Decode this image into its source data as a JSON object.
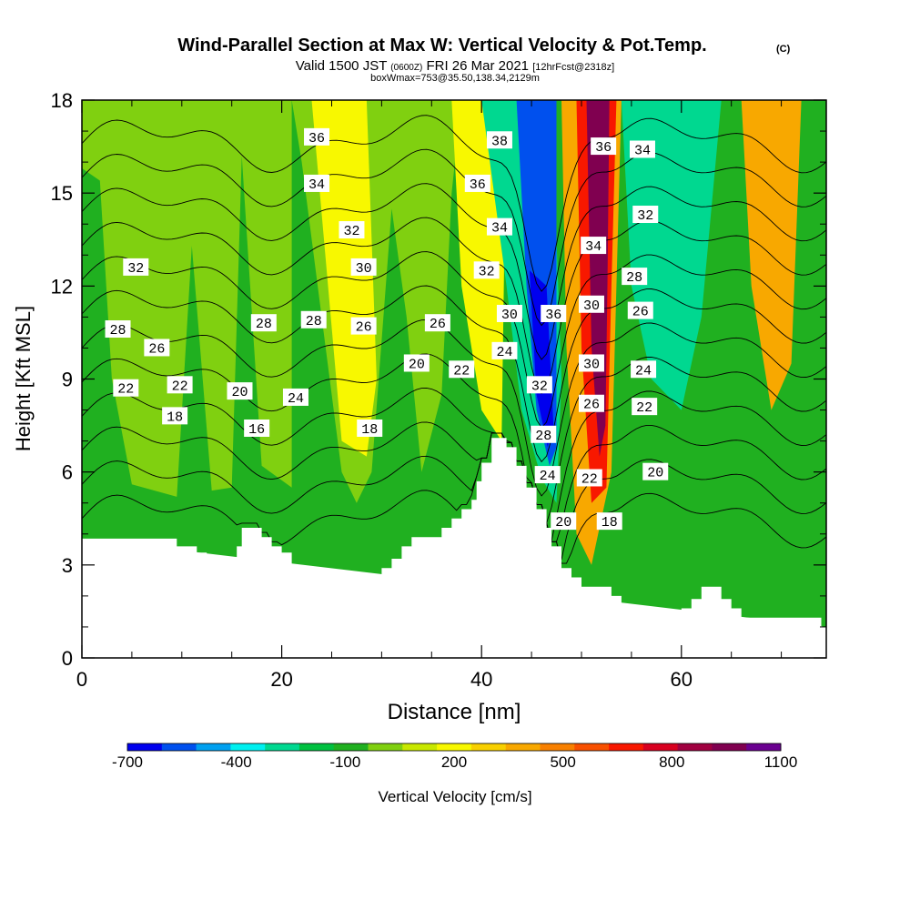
{
  "chart_data": {
    "type": "heatmap",
    "title": "Wind-Parallel Section at Max W: Vertical Velocity & Pot.Temp.",
    "title_mark": "(C)",
    "subtitle": {
      "valid": "Valid 1500 JST",
      "utc": "(0600Z)",
      "date": "FRI 26 Mar 2021",
      "forecast": "[12hrFcst@2318z]"
    },
    "box_info": "boxWmax=753@35.50,138.34,2129m",
    "xlabel": "Distance [nm]",
    "ylabel": "Height [Kft MSL]",
    "xlim": [
      0,
      74.5
    ],
    "ylim": [
      0,
      18
    ],
    "xticks": [
      0,
      20,
      40,
      60
    ],
    "yticks": [
      0,
      3,
      6,
      9,
      12,
      15,
      18
    ],
    "colorbar": {
      "label": "Vertical Velocity [cm/s]",
      "tick_labels": [
        "-700",
        "-400",
        "-100",
        "200",
        "500",
        "800",
        "1100"
      ],
      "tick_values": [
        -700,
        -400,
        -100,
        200,
        500,
        800,
        1100
      ],
      "bounds": [
        -700,
        1100
      ],
      "colors": [
        "#0000ee",
        "#0050ee",
        "#00a0f0",
        "#00f0f0",
        "#00d890",
        "#00c040",
        "#20b020",
        "#80d010",
        "#c8e800",
        "#f8f800",
        "#f8d000",
        "#f8a800",
        "#f88000",
        "#f85000",
        "#f81800",
        "#d80020",
        "#a00040",
        "#800050",
        "#6a0090"
      ]
    },
    "terrain": [
      [
        0,
        3.85
      ],
      [
        9.5,
        3.85
      ],
      [
        9.5,
        3.6
      ],
      [
        11.5,
        3.6
      ],
      [
        11.5,
        3.4
      ],
      [
        12.5,
        3.4
      ],
      [
        12.5,
        3.1
      ],
      [
        13,
        3.1
      ],
      [
        13,
        2.9
      ],
      [
        15,
        2.9
      ],
      [
        15,
        3.1
      ],
      [
        15.5,
        3.1
      ],
      [
        15.5,
        3.6
      ],
      [
        16,
        3.6
      ],
      [
        16,
        4.2
      ],
      [
        18,
        4.2
      ],
      [
        18,
        3.9
      ],
      [
        19,
        3.9
      ],
      [
        19,
        3.6
      ],
      [
        20,
        3.6
      ],
      [
        20,
        3.4
      ],
      [
        21,
        3.4
      ],
      [
        21,
        2.9
      ],
      [
        22,
        2.9
      ],
      [
        22,
        2.6
      ],
      [
        23,
        2.6
      ],
      [
        23,
        2.3
      ],
      [
        24,
        2.3
      ],
      [
        24,
        1.6
      ],
      [
        25,
        1.6
      ],
      [
        25,
        1.3
      ],
      [
        26,
        1.3
      ],
      [
        26,
        1.6
      ],
      [
        27,
        1.6
      ],
      [
        27,
        1.9
      ],
      [
        28,
        1.9
      ],
      [
        28,
        2.2
      ],
      [
        29,
        2.2
      ],
      [
        29,
        2.5
      ],
      [
        30,
        2.5
      ],
      [
        30,
        2.9
      ],
      [
        31,
        2.9
      ],
      [
        31,
        3.2
      ],
      [
        32,
        3.2
      ],
      [
        32,
        3.6
      ],
      [
        33,
        3.6
      ],
      [
        33,
        3.9
      ],
      [
        36,
        3.9
      ],
      [
        36,
        4.2
      ],
      [
        37,
        4.2
      ],
      [
        37,
        4.5
      ],
      [
        38,
        4.5
      ],
      [
        38,
        4.8
      ],
      [
        39,
        4.8
      ],
      [
        39,
        5.1
      ],
      [
        39.5,
        5.1
      ],
      [
        39.5,
        5.7
      ],
      [
        40,
        5.7
      ],
      [
        40,
        6.3
      ],
      [
        41,
        6.3
      ],
      [
        41,
        7.1
      ],
      [
        42.5,
        7.1
      ],
      [
        42.5,
        6.8
      ],
      [
        43.5,
        6.8
      ],
      [
        43.5,
        6.2
      ],
      [
        44.5,
        6.2
      ],
      [
        44.5,
        5.5
      ],
      [
        45.5,
        5.5
      ],
      [
        45.5,
        4.8
      ],
      [
        46.5,
        4.8
      ],
      [
        46.5,
        4.2
      ],
      [
        47,
        4.2
      ],
      [
        47,
        3.6
      ],
      [
        48,
        3.6
      ],
      [
        48,
        2.9
      ],
      [
        49,
        2.9
      ],
      [
        49,
        2.6
      ],
      [
        50,
        2.6
      ],
      [
        50,
        2.3
      ],
      [
        53,
        2.3
      ],
      [
        53,
        2.0
      ],
      [
        54,
        2.0
      ],
      [
        54,
        1.6
      ],
      [
        55,
        1.6
      ],
      [
        55,
        0.9
      ],
      [
        56,
        0.9
      ],
      [
        56,
        0.5
      ],
      [
        57,
        0.5
      ],
      [
        57,
        0.3
      ],
      [
        59,
        0.3
      ],
      [
        59,
        0.9
      ],
      [
        60,
        0.9
      ],
      [
        60,
        1.6
      ],
      [
        61,
        1.6
      ],
      [
        61,
        1.9
      ],
      [
        62,
        1.9
      ],
      [
        62,
        2.3
      ],
      [
        64,
        2.3
      ],
      [
        64,
        1.9
      ],
      [
        65,
        1.9
      ],
      [
        65,
        1.6
      ],
      [
        66,
        1.6
      ],
      [
        66,
        1.3
      ],
      [
        74,
        1.3
      ],
      [
        74,
        1.0
      ],
      [
        74.5,
        1.0
      ]
    ],
    "velocity_bands": [
      {
        "value": -100,
        "polygon": [
          [
            0,
            3.85
          ],
          [
            0,
            18
          ],
          [
            74.5,
            18
          ],
          [
            74.5,
            1.0
          ]
        ]
      },
      {
        "value": 50,
        "polygon": [
          [
            0,
            15.8
          ],
          [
            1.8,
            15.4
          ],
          [
            3,
            9
          ],
          [
            5,
            5.6
          ],
          [
            9.5,
            5.2
          ],
          [
            11,
            13.3
          ],
          [
            13,
            5.4
          ],
          [
            15,
            5.5
          ],
          [
            16,
            16.2
          ],
          [
            18,
            6.2
          ],
          [
            21,
            5.5
          ],
          [
            21,
            18
          ],
          [
            0,
            18
          ]
        ]
      },
      {
        "value": 50,
        "polygon": [
          [
            21,
            18
          ],
          [
            22,
            16
          ],
          [
            24,
            11
          ],
          [
            26,
            6
          ],
          [
            27.5,
            5
          ],
          [
            29,
            6
          ],
          [
            31,
            14.5
          ],
          [
            32.5,
            11
          ],
          [
            34,
            6
          ],
          [
            36,
            8.5
          ],
          [
            37,
            15
          ],
          [
            38,
            18
          ]
        ]
      },
      {
        "value": 200,
        "polygon": [
          [
            23,
            18
          ],
          [
            26,
            7
          ],
          [
            28.5,
            6.5
          ],
          [
            29.5,
            9
          ],
          [
            28.5,
            18
          ]
        ]
      },
      {
        "value": 200,
        "polygon": [
          [
            37,
            18
          ],
          [
            38,
            12
          ],
          [
            40,
            8
          ],
          [
            42,
            7
          ],
          [
            42.5,
            18
          ]
        ]
      },
      {
        "value": -250,
        "polygon": [
          [
            40,
            18
          ],
          [
            42.5,
            12
          ],
          [
            44,
            8
          ],
          [
            46,
            5.8
          ],
          [
            47.5,
            5
          ],
          [
            48,
            9
          ],
          [
            47,
            18
          ]
        ]
      },
      {
        "value": -550,
        "polygon": [
          [
            43.5,
            18
          ],
          [
            44.5,
            12
          ],
          [
            45.5,
            8
          ],
          [
            46.8,
            6.2
          ],
          [
            47.5,
            6.8
          ],
          [
            47.5,
            18
          ]
        ]
      },
      {
        "value": -700,
        "polygon": [
          [
            44.8,
            12.5
          ],
          [
            45.5,
            8.5
          ],
          [
            46.6,
            6.8
          ],
          [
            47.2,
            7.5
          ],
          [
            46.5,
            12
          ]
        ]
      },
      {
        "value": 350,
        "polygon": [
          [
            48,
            18
          ],
          [
            48.5,
            10
          ],
          [
            49.5,
            4
          ],
          [
            51,
            3
          ],
          [
            53,
            6
          ],
          [
            54,
            18
          ]
        ]
      },
      {
        "value": 650,
        "polygon": [
          [
            49.5,
            18
          ],
          [
            50,
            10
          ],
          [
            51,
            5
          ],
          [
            52.5,
            5.5
          ],
          [
            53,
            12
          ],
          [
            53.5,
            18
          ]
        ]
      },
      {
        "value": 950,
        "polygon": [
          [
            50.5,
            18
          ],
          [
            51,
            10
          ],
          [
            51.8,
            6.5
          ],
          [
            52.4,
            7.5
          ],
          [
            52.6,
            12
          ],
          [
            52.8,
            18
          ]
        ]
      },
      {
        "value": -250,
        "polygon": [
          [
            54,
            18
          ],
          [
            55,
            12
          ],
          [
            57,
            9
          ],
          [
            60,
            8
          ],
          [
            62,
            11
          ],
          [
            64,
            18
          ]
        ]
      },
      {
        "value": 350,
        "polygon": [
          [
            66,
            18
          ],
          [
            67,
            12
          ],
          [
            69,
            8
          ],
          [
            71,
            9.5
          ],
          [
            72,
            18
          ]
        ]
      }
    ],
    "isentropes": [
      {
        "value": 16,
        "label_at": [
          17.5,
          7.4
        ]
      },
      {
        "value": 18,
        "label_at": [
          9.3,
          7.8
        ],
        "label_at_2": [
          28.8,
          7.4
        ],
        "label_at_3": [
          52.8,
          4.4
        ]
      },
      {
        "value": 20,
        "label_at": [
          15.8,
          8.6
        ],
        "label_at_2": [
          33.5,
          9.5
        ],
        "label_at_3": [
          48.2,
          4.4
        ],
        "label_at_4": [
          57.4,
          6.0
        ]
      },
      {
        "value": 22,
        "label_at": [
          4.4,
          8.7
        ],
        "label_at_2": [
          9.8,
          8.8
        ],
        "label_at_3": [
          38,
          9.3
        ],
        "label_at_4": [
          50.8,
          5.8
        ],
        "label_at_5": [
          56.3,
          8.1
        ]
      },
      {
        "value": 24,
        "label_at": [
          21.4,
          8.4
        ],
        "label_at_2": [
          42.3,
          9.9
        ],
        "label_at_3": [
          46.6,
          5.9
        ],
        "label_at_4": [
          56.2,
          9.3
        ]
      },
      {
        "value": 26,
        "label_at": [
          7.5,
          10.0
        ],
        "label_at_2": [
          28.2,
          10.7
        ],
        "label_at_3": [
          35.6,
          10.8
        ],
        "label_at_4": [
          51,
          8.2
        ],
        "label_at_5": [
          55.9,
          11.2
        ]
      },
      {
        "value": 28,
        "label_at": [
          3.6,
          10.6
        ],
        "label_at_2": [
          18.2,
          10.8
        ],
        "label_at_3": [
          23.2,
          10.9
        ],
        "label_at_4": [
          46.2,
          7.2
        ],
        "label_at_5": [
          55.3,
          12.3
        ]
      },
      {
        "value": 30,
        "label_at": [
          28.2,
          12.6
        ],
        "label_at_2": [
          42.8,
          11.1
        ],
        "label_at_3": [
          51,
          11.4
        ],
        "label_at_4": [
          51,
          9.5
        ]
      },
      {
        "value": 32,
        "label_at": [
          5.4,
          12.6
        ],
        "label_at_2": [
          27,
          13.8
        ],
        "label_at_3": [
          40.5,
          12.5
        ],
        "label_at_4": [
          45.8,
          8.8
        ],
        "label_at_5": [
          56.4,
          14.3
        ]
      },
      {
        "value": 34,
        "label_at": [
          23.5,
          15.3
        ],
        "label_at_2": [
          41.8,
          13.9
        ],
        "label_at_3": [
          51.2,
          13.3
        ],
        "label_at_4": [
          56.1,
          16.4
        ]
      },
      {
        "value": 36,
        "label_at": [
          23.5,
          16.8
        ],
        "label_at_2": [
          39.6,
          15.3
        ],
        "label_at_3": [
          47.2,
          11.1
        ],
        "label_at_4": [
          52.2,
          16.5
        ]
      },
      {
        "value": 38,
        "label_at": [
          41.8,
          16.7
        ]
      }
    ]
  }
}
